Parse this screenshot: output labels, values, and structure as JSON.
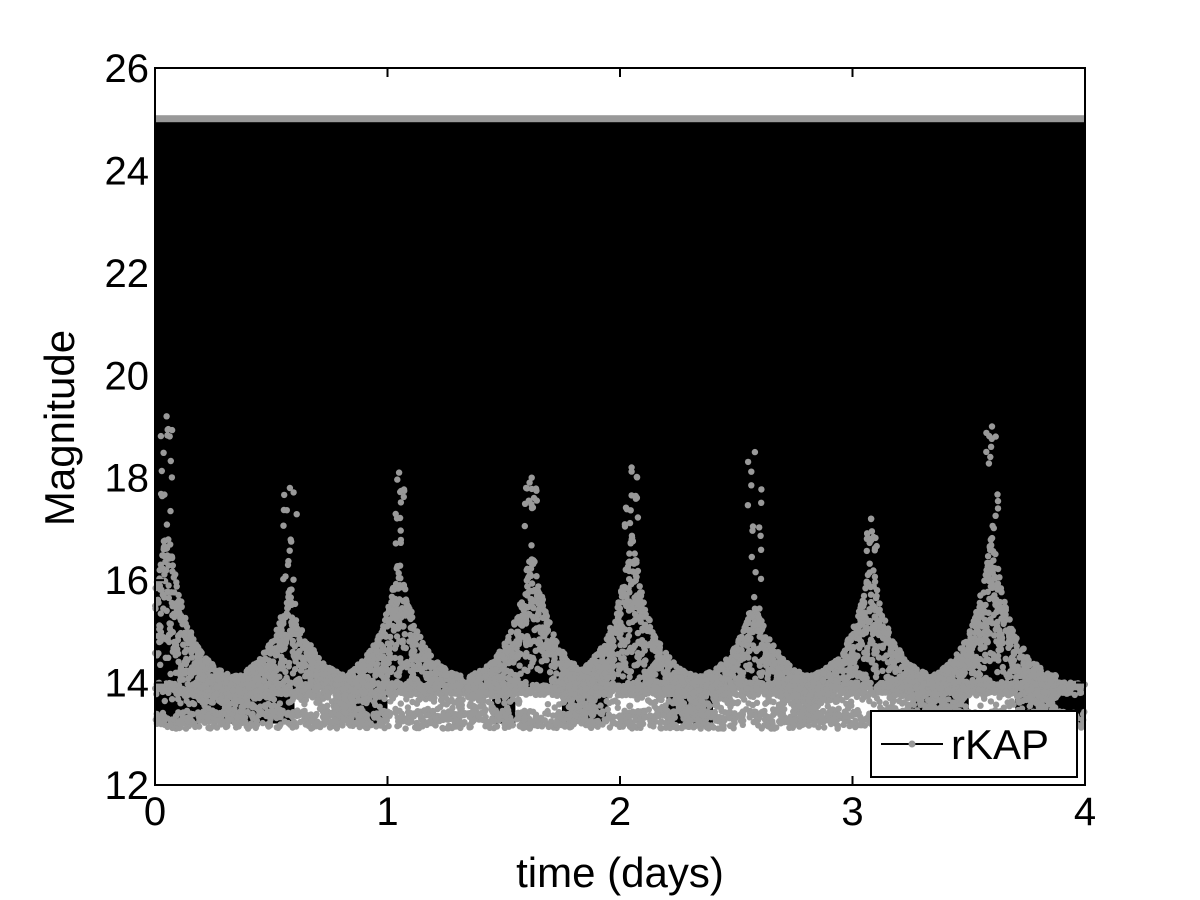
{
  "chart_data": {
    "type": "scatter",
    "title": "",
    "xlabel": "time (days)",
    "ylabel": "Magnitude",
    "xlim": [
      0,
      4
    ],
    "ylim": [
      12,
      26
    ],
    "x_ticks": [
      0,
      1,
      2,
      3,
      4
    ],
    "y_ticks": [
      12,
      14,
      16,
      18,
      20,
      22,
      24,
      26
    ],
    "x_tick_labels": [
      "0",
      "1",
      "2",
      "3",
      "4"
    ],
    "y_tick_labels": [
      "12",
      "14",
      "16",
      "18",
      "20",
      "22",
      "24",
      "26"
    ],
    "grid": false,
    "legend": {
      "position": "bottom-right",
      "entries": [
        "rKAP"
      ]
    },
    "series": [
      {
        "name": "rKAP",
        "marker": "dot",
        "line": "solid",
        "color": "#999999",
        "line_color": "#000000",
        "baseline_magnitude": 14.0,
        "saturation_magnitude": 25.0,
        "faint_floor_magnitude": 13.1,
        "peak_times": [
          0.05,
          0.58,
          1.05,
          1.62,
          2.05,
          2.58,
          3.08,
          3.6
        ],
        "peak_magnitudes": [
          19.2,
          17.8,
          18.1,
          18.0,
          18.2,
          18.5,
          17.2,
          19.0
        ],
        "peak_core_magnitudes": [
          17.2,
          16.0,
          16.5,
          16.8,
          17.0,
          15.8,
          16.5,
          17.0
        ]
      }
    ]
  },
  "colors": {
    "background": "#ffffff",
    "plot_fill": "#000000",
    "points": "#999999",
    "axes": "#000000"
  }
}
